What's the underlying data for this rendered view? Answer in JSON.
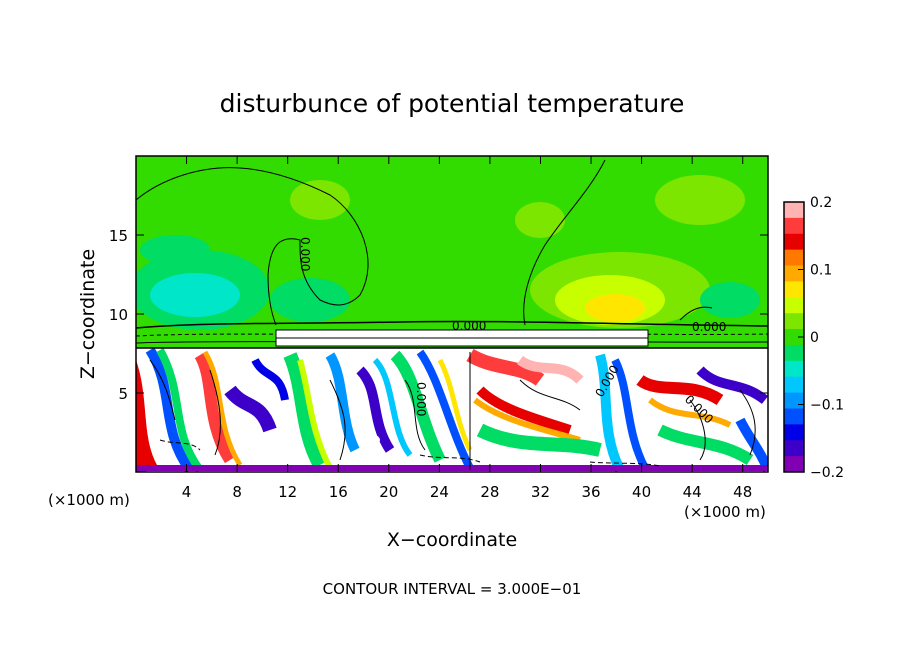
{
  "chart_data": {
    "type": "heatmap",
    "title": "disturbunce of potential temperature",
    "xlabel": "X−coordinate",
    "ylabel": "Z−coordinate",
    "x_unit_left": "(×1000 m)",
    "x_unit_right": "(×1000 m)",
    "xlim": [
      0,
      50
    ],
    "ylim": [
      0,
      20
    ],
    "x_ticks": [
      4,
      8,
      12,
      16,
      20,
      24,
      28,
      32,
      36,
      40,
      44,
      48
    ],
    "x_tick_labels": [
      "4",
      "8",
      "12",
      "16",
      "20",
      "24",
      "28",
      "32",
      "36",
      "40",
      "44",
      "48"
    ],
    "y_ticks": [
      5,
      10,
      15
    ],
    "y_tick_labels": [
      "5",
      "10",
      "15"
    ],
    "colorbar": {
      "range": [
        -0.2,
        0.2
      ],
      "ticks": [
        0.2,
        0.1,
        0,
        -0.1,
        -0.2
      ],
      "tick_labels": [
        "0.2",
        "0.1",
        "0",
        "−0.1",
        "−0.2"
      ],
      "colors": [
        "#ffb3b3",
        "#ff3c3c",
        "#e60000",
        "#ff7800",
        "#ffaa00",
        "#ffe600",
        "#c8ff00",
        "#7de600",
        "#32dc00",
        "#00dc64",
        "#00e6c8",
        "#00c8ff",
        "#0096ff",
        "#0050ff",
        "#0000e6",
        "#3c00c8",
        "#8200b4"
      ]
    },
    "contour_labels": [
      "0.000",
      "0.000",
      "0.000",
      "0.000",
      "0.000",
      "0.000"
    ],
    "footer": "CONTOUR INTERVAL = 3.000E−01"
  }
}
